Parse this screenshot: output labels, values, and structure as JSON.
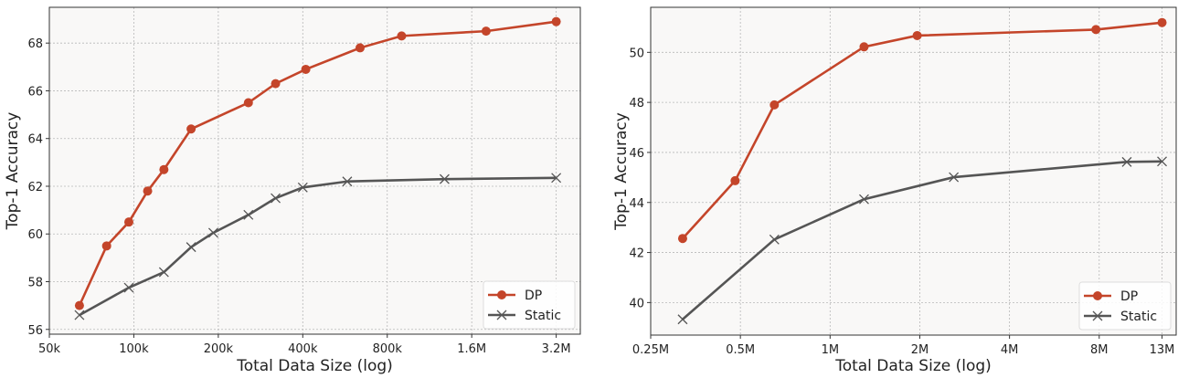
{
  "colors": {
    "dp": "#c4452a",
    "static": "#555555",
    "background": "#f9f8f7",
    "grid": "#b8b8b8"
  },
  "chart_data": [
    {
      "type": "line",
      "xscale": "log2",
      "xlabel": "Total Data Size (log)",
      "ylabel": "Top-1 Accuracy",
      "xlim": [
        50000,
        3900000
      ],
      "ylim": [
        55.8,
        69.5
      ],
      "xticks": [
        50000,
        100000,
        200000,
        400000,
        800000,
        1600000,
        3200000
      ],
      "xtick_labels": [
        "50k",
        "100k",
        "200k",
        "400k",
        "800k",
        "1.6M",
        "3.2M"
      ],
      "yticks": [
        56,
        58,
        60,
        62,
        64,
        66,
        68
      ],
      "ytick_labels": [
        "56",
        "58",
        "60",
        "62",
        "64",
        "66",
        "68"
      ],
      "grid": true,
      "legend": "bottom-right",
      "series": [
        {
          "name": "DP",
          "marker": "circle",
          "x": [
            64000,
            80000,
            96000,
            112000,
            128000,
            160000,
            256000,
            320000,
            410000,
            640000,
            900000,
            1800000,
            3200000
          ],
          "y": [
            57.0,
            59.5,
            60.5,
            61.8,
            62.7,
            64.4,
            65.5,
            66.3,
            66.9,
            67.8,
            68.3,
            68.5,
            68.9
          ]
        },
        {
          "name": "Static",
          "marker": "x",
          "x": [
            64000,
            96000,
            128000,
            160000,
            192000,
            256000,
            320000,
            400000,
            576000,
            1280000,
            3200000
          ],
          "y": [
            56.6,
            57.75,
            58.4,
            59.45,
            60.05,
            60.8,
            61.5,
            61.95,
            62.2,
            62.3,
            62.35
          ]
        }
      ]
    },
    {
      "type": "line",
      "xscale": "log2",
      "xlabel": "Total Data Size (log)",
      "ylabel": "Top-1 Accuracy",
      "xlim": [
        250000,
        14500000
      ],
      "ylim": [
        38.7,
        51.8
      ],
      "xticks": [
        250000,
        500000,
        1000000,
        2000000,
        4000000,
        8000000,
        13000000
      ],
      "xtick_labels": [
        "0.25M",
        "0.5M",
        "1M",
        "2M",
        "4M",
        "8M",
        "13M"
      ],
      "yticks": [
        40,
        42,
        44,
        46,
        48,
        50
      ],
      "ytick_labels": [
        "40",
        "42",
        "44",
        "46",
        "48",
        "50"
      ],
      "grid": true,
      "legend": "bottom-right",
      "series": [
        {
          "name": "DP",
          "marker": "circle",
          "x": [
            320000,
            480000,
            650000,
            1300000,
            1960000,
            7800000,
            13000000
          ],
          "y": [
            42.56,
            44.87,
            47.9,
            50.22,
            50.67,
            50.91,
            51.19
          ]
        },
        {
          "name": "Static",
          "marker": "x",
          "x": [
            320000,
            650000,
            1300000,
            2600000,
            9900000,
            13000000
          ],
          "y": [
            39.33,
            42.52,
            44.13,
            45.01,
            45.62,
            45.64
          ]
        }
      ]
    }
  ]
}
